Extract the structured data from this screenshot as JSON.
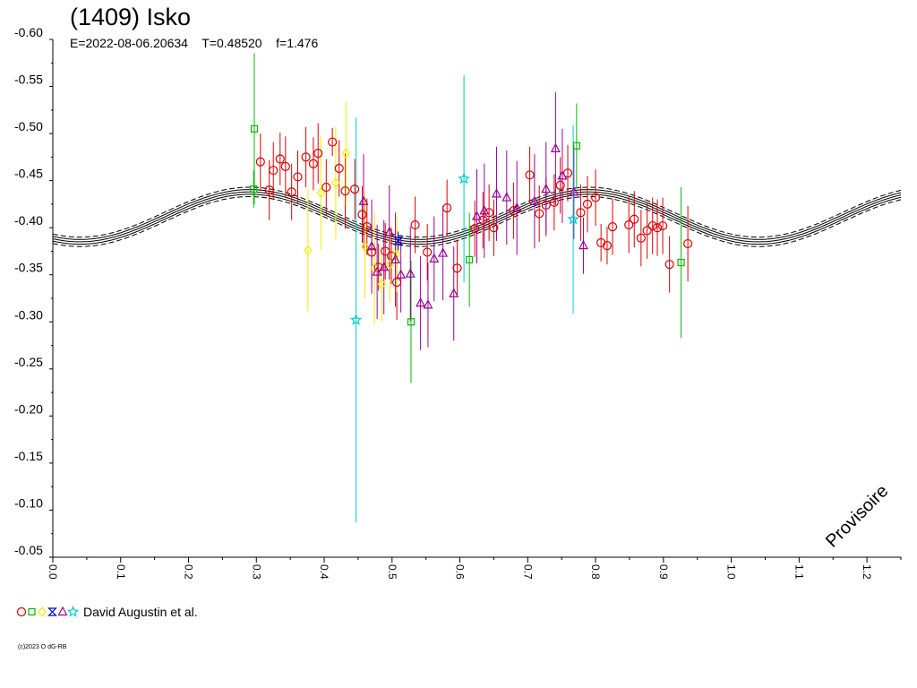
{
  "chart_data": {
    "type": "scatter",
    "title": "(1409) Isko",
    "subtitle": "E=2022-08-06.20634    T=0.48520    f=1.476",
    "watermark": "Provisoire",
    "copyright": "(c)2023 O dG-RB",
    "xlim": [
      0.0,
      1.25
    ],
    "ylim": [
      -0.6,
      -0.05
    ],
    "y_inverted": true,
    "x_ticks": [
      "0.0",
      "0.1",
      "0.2",
      "0.3",
      "0.4",
      "0.5",
      "0.6",
      "0.7",
      "0.8",
      "0.9",
      "1.0",
      "1.1",
      "1.2"
    ],
    "y_ticks": [
      "-0.60",
      "-0.55",
      "-0.50",
      "-0.45",
      "-0.40",
      "-0.35",
      "-0.30",
      "-0.25",
      "-0.20",
      "-0.15",
      "-0.10",
      "-0.05"
    ],
    "grid": false,
    "legend_placement": "bottom-left",
    "legend": {
      "label": "David Augustin et al."
    },
    "fit": {
      "offset": -0.4115,
      "amplitude": 0.0265,
      "phase_of_max_brightness": 0.79,
      "period_fraction": 0.5,
      "band": 0.005,
      "color": "#000000"
    },
    "series": [
      {
        "marker": "circle",
        "color": "#dd0000",
        "points": [
          [
            0.306,
            -0.47,
            0.03
          ],
          [
            0.319,
            -0.44,
            0.032
          ],
          [
            0.325,
            -0.461,
            0.03
          ],
          [
            0.335,
            -0.473,
            0.028
          ],
          [
            0.343,
            -0.465,
            0.032
          ],
          [
            0.352,
            -0.438,
            0.03
          ],
          [
            0.361,
            -0.454,
            0.028
          ],
          [
            0.373,
            -0.475,
            0.032
          ],
          [
            0.384,
            -0.468,
            0.028
          ],
          [
            0.391,
            -0.479,
            0.032
          ],
          [
            0.403,
            -0.443,
            0.03
          ],
          [
            0.412,
            -0.491,
            0.015
          ],
          [
            0.422,
            -0.463,
            0.03
          ],
          [
            0.431,
            -0.439,
            0.04
          ],
          [
            0.445,
            -0.441,
            0.032
          ],
          [
            0.456,
            -0.414,
            0.03
          ],
          [
            0.463,
            -0.401,
            0.03
          ],
          [
            0.47,
            -0.374,
            0.03
          ],
          [
            0.48,
            -0.358,
            0.025
          ],
          [
            0.49,
            -0.375,
            0.03
          ],
          [
            0.499,
            -0.37,
            0.03
          ],
          [
            0.507,
            -0.342,
            0.04
          ],
          [
            0.534,
            -0.403,
            0.03
          ],
          [
            0.552,
            -0.374,
            0.03
          ],
          [
            0.581,
            -0.421,
            0.03
          ],
          [
            0.596,
            -0.357,
            0.03
          ],
          [
            0.622,
            -0.399,
            0.03
          ],
          [
            0.634,
            -0.408,
            0.03
          ],
          [
            0.643,
            -0.416,
            0.03
          ],
          [
            0.65,
            -0.4,
            0.03
          ],
          [
            0.679,
            -0.418,
            0.03
          ],
          [
            0.703,
            -0.456,
            0.03
          ],
          [
            0.717,
            -0.415,
            0.03
          ],
          [
            0.727,
            -0.424,
            0.03
          ],
          [
            0.739,
            -0.427,
            0.03
          ],
          [
            0.748,
            -0.445,
            0.03
          ],
          [
            0.759,
            -0.458,
            0.03
          ],
          [
            0.778,
            -0.416,
            0.03
          ],
          [
            0.788,
            -0.425,
            0.03
          ],
          [
            0.8,
            -0.432,
            0.03
          ],
          [
            0.808,
            -0.384,
            0.02
          ],
          [
            0.817,
            -0.381,
            0.02
          ],
          [
            0.825,
            -0.401,
            0.03
          ],
          [
            0.849,
            -0.403,
            0.03
          ],
          [
            0.857,
            -0.409,
            0.03
          ],
          [
            0.867,
            -0.389,
            0.03
          ],
          [
            0.876,
            -0.397,
            0.03
          ],
          [
            0.884,
            -0.402,
            0.03
          ],
          [
            0.891,
            -0.4,
            0.03
          ],
          [
            0.899,
            -0.402,
            0.03
          ],
          [
            0.909,
            -0.361,
            0.03
          ],
          [
            0.936,
            -0.383,
            0.04
          ]
        ]
      },
      {
        "marker": "square",
        "color": "#00bb00",
        "points": [
          [
            0.297,
            -0.505,
            0.08
          ],
          [
            0.296,
            -0.441,
            0.02
          ],
          [
            0.528,
            -0.3,
            0.065
          ],
          [
            0.614,
            -0.366,
            0.05
          ],
          [
            0.772,
            -0.487,
            0.045
          ],
          [
            0.926,
            -0.363,
            0.08
          ]
        ]
      },
      {
        "marker": "diamond",
        "color": "#eeee00",
        "points": [
          [
            0.376,
            -0.376,
            0.065
          ],
          [
            0.395,
            -0.437,
            0.06
          ],
          [
            0.417,
            -0.448,
            0.06
          ],
          [
            0.432,
            -0.479,
            0.055
          ],
          [
            0.46,
            -0.38,
            0.055
          ],
          [
            0.474,
            -0.357,
            0.06
          ],
          [
            0.485,
            -0.34,
            0.04
          ],
          [
            0.497,
            -0.361,
            0.04
          ],
          [
            0.507,
            -0.372,
            0.04
          ]
        ]
      },
      {
        "marker": "hourglass",
        "color": "#0000cc",
        "points": [
          [
            0.509,
            -0.386,
            0.01
          ]
        ]
      },
      {
        "marker": "triangle",
        "color": "#990099",
        "points": [
          [
            0.458,
            -0.428,
            0.05
          ],
          [
            0.47,
            -0.38,
            0.05
          ],
          [
            0.478,
            -0.353,
            0.05
          ],
          [
            0.488,
            -0.358,
            0.05
          ],
          [
            0.496,
            -0.395,
            0.05
          ],
          [
            0.505,
            -0.366,
            0.05
          ],
          [
            0.513,
            -0.35,
            0.04
          ],
          [
            0.527,
            -0.351,
            0.05
          ],
          [
            0.542,
            -0.32,
            0.05
          ],
          [
            0.553,
            -0.318,
            0.045
          ],
          [
            0.562,
            -0.367,
            0.045
          ],
          [
            0.575,
            -0.373,
            0.05
          ],
          [
            0.591,
            -0.33,
            0.05
          ],
          [
            0.625,
            -0.412,
            0.05
          ],
          [
            0.636,
            -0.418,
            0.05
          ],
          [
            0.654,
            -0.436,
            0.05
          ],
          [
            0.669,
            -0.432,
            0.05
          ],
          [
            0.684,
            -0.421,
            0.05
          ],
          [
            0.71,
            -0.428,
            0.05
          ],
          [
            0.727,
            -0.441,
            0.05
          ],
          [
            0.741,
            -0.484,
            0.06
          ],
          [
            0.751,
            -0.455,
            0.05
          ],
          [
            0.768,
            -0.438,
            0.05
          ],
          [
            0.782,
            -0.381,
            0.03
          ]
        ]
      },
      {
        "marker": "star",
        "color": "#00cccc",
        "points": [
          [
            0.447,
            -0.302,
            0.215
          ],
          [
            0.606,
            -0.452,
            0.11
          ],
          [
            0.767,
            -0.409,
            0.1
          ]
        ]
      }
    ]
  }
}
